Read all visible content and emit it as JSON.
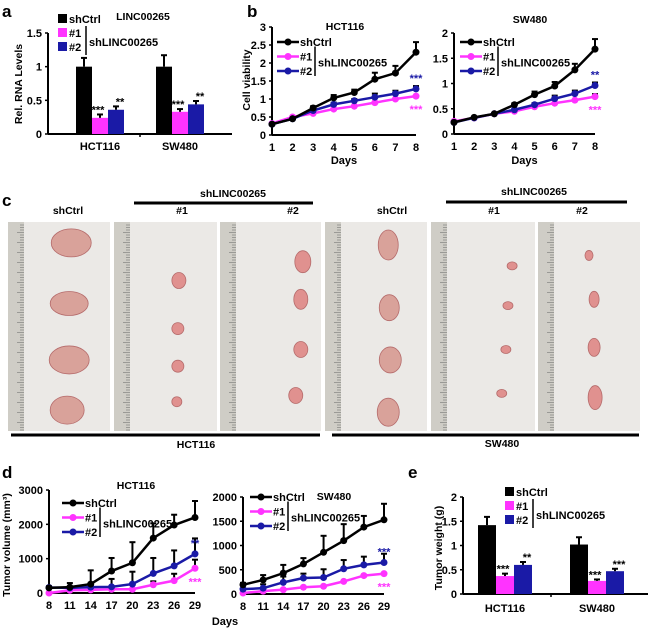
{
  "panel_labels": {
    "a": "a",
    "b": "b",
    "c": "c",
    "d": "d",
    "e": "e"
  },
  "legend": {
    "ctrl": "shCtrl",
    "s1": "#1",
    "s2": "#2",
    "group": "shLINC00265"
  },
  "colors": {
    "ctrl": "#000000",
    "s1": "#ff33ff",
    "s2": "#1a1aa6"
  },
  "panel_c": {
    "group_header": "shLINC00265",
    "labels": [
      "shCtrl",
      "#1",
      "#2",
      "shCtrl",
      "#1",
      "#2"
    ],
    "cell_lines": [
      "HCT116",
      "SW480"
    ]
  },
  "chart_data": [
    {
      "id": "a",
      "type": "bar",
      "title": "LINC00265",
      "xlabel": "",
      "ylabel": "Rel. RNA Levels",
      "ylim": [
        0,
        1.5
      ],
      "yticks": [
        "0",
        "0.5",
        "1",
        "1.5"
      ],
      "ytick_values": [
        0,
        0.5,
        1,
        1.5
      ],
      "categories": [
        "HCT116",
        "SW480"
      ],
      "series": [
        {
          "name": "shCtrl",
          "values": [
            1.0,
            1.0
          ],
          "errors": [
            0.13,
            0.17
          ],
          "sig": [
            "",
            ""
          ]
        },
        {
          "name": "#1",
          "values": [
            0.24,
            0.33
          ],
          "errors": [
            0.05,
            0.04
          ],
          "sig": [
            "***",
            "***"
          ]
        },
        {
          "name": "#2",
          "values": [
            0.36,
            0.44
          ],
          "errors": [
            0.05,
            0.05
          ],
          "sig": [
            "**",
            "**"
          ]
        }
      ]
    },
    {
      "id": "b1",
      "type": "line",
      "title": "HCT116",
      "xlabel": "Days",
      "ylabel": "Cell viability",
      "ylim": [
        0,
        3
      ],
      "yticks": [
        "0",
        "0.5",
        "1",
        "1.5",
        "2",
        "2.5",
        "3"
      ],
      "ytick_values": [
        0,
        0.5,
        1,
        1.5,
        2,
        2.5,
        3
      ],
      "x": [
        1,
        2,
        3,
        4,
        5,
        6,
        7,
        8
      ],
      "xticks": [
        "1",
        "2",
        "3",
        "4",
        "5",
        "6",
        "7",
        "8"
      ],
      "series": [
        {
          "name": "shCtrl",
          "values": [
            0.3,
            0.45,
            0.75,
            1.03,
            1.18,
            1.55,
            1.72,
            2.3
          ],
          "errors": [
            0,
            0,
            0.05,
            0.08,
            0.08,
            0.18,
            0.2,
            0.28
          ],
          "sig": ""
        },
        {
          "name": "#1",
          "values": [
            0.32,
            0.5,
            0.6,
            0.72,
            0.8,
            0.9,
            1.0,
            1.08
          ],
          "errors": [
            0,
            0,
            0,
            0,
            0,
            0,
            0,
            0
          ],
          "sig": "***"
        },
        {
          "name": "#2",
          "values": [
            0.3,
            0.45,
            0.68,
            0.85,
            0.95,
            1.05,
            1.15,
            1.28
          ],
          "errors": [
            0,
            0,
            0,
            0.05,
            0.05,
            0.1,
            0.08,
            0.08
          ],
          "sig": "***"
        }
      ]
    },
    {
      "id": "b2",
      "type": "line",
      "title": "SW480",
      "xlabel": "Days",
      "ylabel": "",
      "ylim": [
        0,
        2
      ],
      "yticks": [
        "0",
        "0.5",
        "1",
        "1.5",
        "2"
      ],
      "ytick_values": [
        0,
        0.5,
        1,
        1.5,
        2
      ],
      "x": [
        1,
        2,
        3,
        4,
        5,
        6,
        7,
        8
      ],
      "xticks": [
        "1",
        "2",
        "3",
        "4",
        "5",
        "6",
        "7",
        "8"
      ],
      "series": [
        {
          "name": "shCtrl",
          "values": [
            0.23,
            0.33,
            0.4,
            0.58,
            0.78,
            0.95,
            1.27,
            1.68
          ],
          "errors": [
            0,
            0,
            0,
            0.03,
            0.06,
            0.08,
            0.12,
            0.2
          ],
          "sig": ""
        },
        {
          "name": "#1",
          "values": [
            0.25,
            0.32,
            0.4,
            0.45,
            0.54,
            0.61,
            0.67,
            0.74
          ],
          "errors": [
            0,
            0,
            0,
            0,
            0,
            0,
            0,
            0.05
          ],
          "sig": "***"
        },
        {
          "name": "#2",
          "values": [
            0.23,
            0.32,
            0.4,
            0.48,
            0.58,
            0.7,
            0.8,
            0.96
          ],
          "errors": [
            0,
            0,
            0,
            0,
            0.03,
            0.06,
            0.06,
            0.06
          ],
          "sig": "**"
        }
      ]
    },
    {
      "id": "d1",
      "type": "line",
      "title": "HCT116",
      "xlabel": "",
      "ylabel": "Tumor volume (mm³)",
      "ylim": [
        0,
        3000
      ],
      "yticks": [
        "0",
        "1000",
        "2000",
        "3000"
      ],
      "ytick_values": [
        0,
        1000,
        2000,
        3000
      ],
      "x": [
        8,
        11,
        14,
        17,
        20,
        23,
        26,
        29
      ],
      "xticks": [
        "8",
        "11",
        "14",
        "17",
        "20",
        "23",
        "26",
        "29"
      ],
      "series": [
        {
          "name": "shCtrl",
          "values": [
            150,
            170,
            260,
            640,
            880,
            1600,
            1980,
            2200
          ],
          "errors": [
            50,
            120,
            400,
            380,
            600,
            430,
            300,
            480
          ],
          "sig": ""
        },
        {
          "name": "#1",
          "values": [
            0,
            80,
            90,
            110,
            110,
            240,
            360,
            720
          ],
          "errors": [
            0,
            0,
            0,
            0,
            0,
            100,
            200,
            250
          ],
          "sig": "***"
        },
        {
          "name": "#2",
          "values": [
            160,
            150,
            170,
            180,
            260,
            570,
            790,
            1140
          ],
          "errors": [
            0,
            0,
            0,
            230,
            360,
            450,
            450,
            450
          ],
          "sig": "**"
        }
      ]
    },
    {
      "id": "d2",
      "type": "line",
      "title": "SW480",
      "xlabel": "Days",
      "ylabel": "",
      "ylim": [
        0,
        2000
      ],
      "yticks": [
        "0",
        "500",
        "1000",
        "1500",
        "2000"
      ],
      "ytick_values": [
        0,
        500,
        1000,
        1500,
        2000
      ],
      "x": [
        8,
        11,
        14,
        17,
        20,
        23,
        26,
        29
      ],
      "xticks": [
        "8",
        "11",
        "14",
        "17",
        "20",
        "23",
        "26",
        "29"
      ],
      "series": [
        {
          "name": "shCtrl",
          "values": [
            190,
            290,
            430,
            620,
            860,
            1100,
            1380,
            1530
          ],
          "errors": [
            40,
            100,
            170,
            120,
            340,
            340,
            230,
            330
          ],
          "sig": ""
        },
        {
          "name": "#1",
          "values": [
            20,
            60,
            90,
            140,
            160,
            260,
            380,
            420
          ],
          "errors": [
            0,
            0,
            0,
            0,
            0,
            0,
            0,
            0
          ],
          "sig": "***"
        },
        {
          "name": "#2",
          "values": [
            100,
            120,
            240,
            330,
            340,
            520,
            600,
            650
          ],
          "errors": [
            0,
            80,
            120,
            90,
            170,
            180,
            170,
            180
          ],
          "sig": "***"
        }
      ]
    },
    {
      "id": "e",
      "type": "bar",
      "title": "",
      "xlabel": "",
      "ylabel": "Tumor weight (g)",
      "ylim": [
        0,
        2
      ],
      "yticks": [
        "0",
        "0.5",
        "1",
        "1.5",
        "2"
      ],
      "ytick_values": [
        0,
        0.5,
        1,
        1.5,
        2
      ],
      "categories": [
        "HCT116",
        "SW480"
      ],
      "series": [
        {
          "name": "shCtrl",
          "values": [
            1.42,
            1.02
          ],
          "errors": [
            0.17,
            0.15
          ],
          "sig": [
            "",
            ""
          ]
        },
        {
          "name": "#1",
          "values": [
            0.37,
            0.27
          ],
          "errors": [
            0.05,
            0.03
          ],
          "sig": [
            "***",
            "***"
          ]
        },
        {
          "name": "#2",
          "values": [
            0.6,
            0.47
          ],
          "errors": [
            0.06,
            0.05
          ],
          "sig": [
            "**",
            "***"
          ]
        }
      ]
    }
  ]
}
